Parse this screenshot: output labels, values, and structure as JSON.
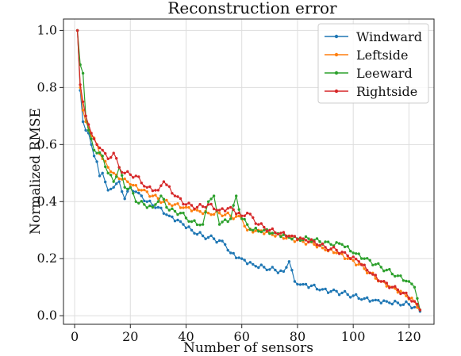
{
  "chart_data": {
    "type": "line",
    "title": "Reconstruction error",
    "xlabel": "Number of sensors",
    "ylabel": "Normalized RMSE",
    "xlim": [
      -4,
      129
    ],
    "ylim": [
      -0.03,
      1.04
    ],
    "xticks": [
      0,
      20,
      40,
      60,
      80,
      100,
      120
    ],
    "yticks": [
      0.0,
      0.2,
      0.4,
      0.6,
      0.8,
      1.0
    ],
    "xtick_labels": [
      "0",
      "20",
      "40",
      "60",
      "80",
      "100",
      "120"
    ],
    "ytick_labels": [
      "0.0",
      "0.2",
      "0.4",
      "0.6",
      "0.8",
      "1.0"
    ],
    "grid": true,
    "legend_position": "top-right",
    "anchors": [
      {
        "name": "Windward",
        "color": "#1f77b4",
        "points": [
          [
            1,
            1.0
          ],
          [
            2,
            0.79
          ],
          [
            3,
            0.68
          ],
          [
            4,
            0.65
          ],
          [
            5,
            0.64
          ],
          [
            6,
            0.6
          ],
          [
            7,
            0.56
          ],
          [
            8,
            0.54
          ],
          [
            9,
            0.49
          ],
          [
            10,
            0.5
          ],
          [
            12,
            0.44
          ],
          [
            14,
            0.45
          ],
          [
            16,
            0.47
          ],
          [
            18,
            0.41
          ],
          [
            20,
            0.45
          ],
          [
            23,
            0.43
          ],
          [
            26,
            0.4
          ],
          [
            30,
            0.38
          ],
          [
            34,
            0.35
          ],
          [
            38,
            0.33
          ],
          [
            42,
            0.3
          ],
          [
            46,
            0.28
          ],
          [
            50,
            0.27
          ],
          [
            54,
            0.25
          ],
          [
            56,
            0.22
          ],
          [
            60,
            0.2
          ],
          [
            64,
            0.18
          ],
          [
            68,
            0.17
          ],
          [
            72,
            0.16
          ],
          [
            75,
            0.155
          ],
          [
            77,
            0.19
          ],
          [
            79,
            0.12
          ],
          [
            82,
            0.11
          ],
          [
            85,
            0.105
          ],
          [
            88,
            0.09
          ],
          [
            92,
            0.085
          ],
          [
            96,
            0.08
          ],
          [
            100,
            0.07
          ],
          [
            104,
            0.06
          ],
          [
            108,
            0.055
          ],
          [
            112,
            0.05
          ],
          [
            116,
            0.045
          ],
          [
            120,
            0.04
          ],
          [
            122,
            0.03
          ],
          [
            124,
            0.015
          ]
        ]
      },
      {
        "name": "Leftside",
        "color": "#ff7f0e",
        "points": [
          [
            1,
            1.0
          ],
          [
            2,
            0.8
          ],
          [
            3,
            0.72
          ],
          [
            4,
            0.68
          ],
          [
            5,
            0.66
          ],
          [
            6,
            0.63
          ],
          [
            8,
            0.6
          ],
          [
            10,
            0.55
          ],
          [
            12,
            0.52
          ],
          [
            14,
            0.5
          ],
          [
            16,
            0.48
          ],
          [
            18,
            0.48
          ],
          [
            20,
            0.46
          ],
          [
            24,
            0.44
          ],
          [
            28,
            0.42
          ],
          [
            32,
            0.4
          ],
          [
            36,
            0.39
          ],
          [
            40,
            0.38
          ],
          [
            44,
            0.37
          ],
          [
            48,
            0.36
          ],
          [
            52,
            0.36
          ],
          [
            56,
            0.35
          ],
          [
            60,
            0.34
          ],
          [
            62,
            0.3
          ],
          [
            66,
            0.3
          ],
          [
            70,
            0.29
          ],
          [
            74,
            0.28
          ],
          [
            78,
            0.27
          ],
          [
            82,
            0.26
          ],
          [
            86,
            0.25
          ],
          [
            90,
            0.23
          ],
          [
            94,
            0.22
          ],
          [
            98,
            0.2
          ],
          [
            102,
            0.18
          ],
          [
            106,
            0.15
          ],
          [
            110,
            0.12
          ],
          [
            114,
            0.1
          ],
          [
            118,
            0.08
          ],
          [
            122,
            0.05
          ],
          [
            124,
            0.02
          ]
        ]
      },
      {
        "name": "Leeward",
        "color": "#2ca02c",
        "points": [
          [
            1,
            1.0
          ],
          [
            2,
            0.88
          ],
          [
            3,
            0.85
          ],
          [
            4,
            0.7
          ],
          [
            5,
            0.65
          ],
          [
            6,
            0.62
          ],
          [
            7,
            0.58
          ],
          [
            8,
            0.57
          ],
          [
            10,
            0.56
          ],
          [
            12,
            0.5
          ],
          [
            14,
            0.47
          ],
          [
            16,
            0.52
          ],
          [
            18,
            0.45
          ],
          [
            20,
            0.45
          ],
          [
            22,
            0.4
          ],
          [
            25,
            0.39
          ],
          [
            28,
            0.38
          ],
          [
            31,
            0.42
          ],
          [
            34,
            0.37
          ],
          [
            38,
            0.36
          ],
          [
            42,
            0.33
          ],
          [
            46,
            0.32
          ],
          [
            48,
            0.4
          ],
          [
            50,
            0.42
          ],
          [
            52,
            0.32
          ],
          [
            56,
            0.34
          ],
          [
            58,
            0.42
          ],
          [
            60,
            0.34
          ],
          [
            64,
            0.3
          ],
          [
            68,
            0.3
          ],
          [
            72,
            0.29
          ],
          [
            76,
            0.28
          ],
          [
            80,
            0.27
          ],
          [
            84,
            0.27
          ],
          [
            88,
            0.26
          ],
          [
            92,
            0.25
          ],
          [
            96,
            0.25
          ],
          [
            100,
            0.22
          ],
          [
            104,
            0.2
          ],
          [
            108,
            0.18
          ],
          [
            112,
            0.16
          ],
          [
            116,
            0.14
          ],
          [
            120,
            0.12
          ],
          [
            122,
            0.1
          ],
          [
            124,
            0.02
          ]
        ]
      },
      {
        "name": "Rightside",
        "color": "#d62728",
        "points": [
          [
            1,
            1.0
          ],
          [
            2,
            0.81
          ],
          [
            3,
            0.75
          ],
          [
            4,
            0.7
          ],
          [
            5,
            0.67
          ],
          [
            6,
            0.64
          ],
          [
            8,
            0.6
          ],
          [
            10,
            0.58
          ],
          [
            12,
            0.55
          ],
          [
            14,
            0.57
          ],
          [
            16,
            0.52
          ],
          [
            18,
            0.5
          ],
          [
            22,
            0.49
          ],
          [
            26,
            0.45
          ],
          [
            30,
            0.44
          ],
          [
            32,
            0.47
          ],
          [
            36,
            0.42
          ],
          [
            40,
            0.39
          ],
          [
            44,
            0.38
          ],
          [
            48,
            0.39
          ],
          [
            52,
            0.37
          ],
          [
            56,
            0.38
          ],
          [
            60,
            0.35
          ],
          [
            62,
            0.36
          ],
          [
            66,
            0.32
          ],
          [
            70,
            0.3
          ],
          [
            74,
            0.29
          ],
          [
            78,
            0.28
          ],
          [
            82,
            0.27
          ],
          [
            86,
            0.26
          ],
          [
            90,
            0.24
          ],
          [
            94,
            0.23
          ],
          [
            98,
            0.21
          ],
          [
            102,
            0.19
          ],
          [
            106,
            0.15
          ],
          [
            110,
            0.12
          ],
          [
            114,
            0.1
          ],
          [
            118,
            0.08
          ],
          [
            122,
            0.05
          ],
          [
            124,
            0.02
          ]
        ]
      }
    ]
  }
}
